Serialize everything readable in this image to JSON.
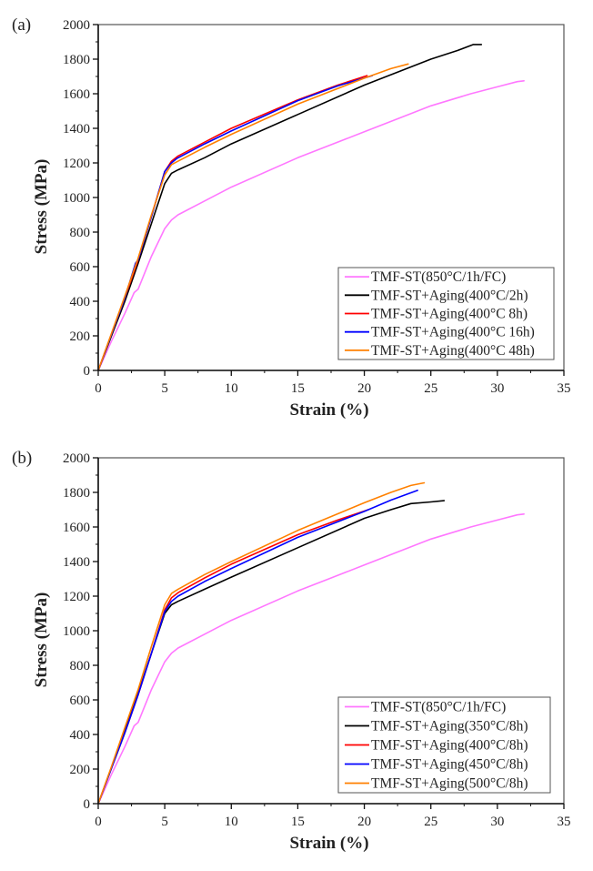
{
  "chart_data": [
    {
      "type": "line",
      "panel_label": "(a)",
      "title": "",
      "xlabel": "Strain (%)",
      "ylabel": "Stress (MPa)",
      "xlim": [
        0,
        35
      ],
      "ylim": [
        0,
        2000
      ],
      "xticks": [
        0,
        5,
        10,
        15,
        20,
        25,
        30,
        35
      ],
      "yticks": [
        0,
        200,
        400,
        600,
        800,
        1000,
        1200,
        1400,
        1600,
        1800,
        2000
      ],
      "grid": false,
      "legend_position": "bottom-right",
      "series": [
        {
          "name": "TMF-ST(850°C/1h/FC)",
          "color": "#ff77ff",
          "x": [
            0,
            1,
            2,
            2.7,
            3.0,
            4,
            5,
            5.5,
            6,
            8,
            10,
            15,
            20,
            25,
            28,
            30,
            31.5,
            32
          ],
          "y": [
            0,
            170,
            330,
            450,
            470,
            660,
            820,
            870,
            900,
            980,
            1060,
            1230,
            1380,
            1530,
            1600,
            1640,
            1670,
            1675
          ]
        },
        {
          "name": "TMF-ST+Aging(400°C/2h)",
          "color": "#000000",
          "x": [
            0,
            1,
            2,
            3,
            4,
            5,
            5.5,
            6,
            8,
            10,
            15,
            20,
            25,
            27,
            28.2,
            28.8
          ],
          "y": [
            0,
            200,
            400,
            620,
            850,
            1080,
            1140,
            1160,
            1230,
            1310,
            1480,
            1650,
            1800,
            1850,
            1885,
            1885
          ]
        },
        {
          "name": "TMF-ST+Aging(400°C 8h)",
          "color": "#ff0000",
          "x": [
            0,
            1,
            2,
            3,
            4,
            5,
            5.5,
            6,
            8,
            10,
            15,
            18,
            20.2
          ],
          "y": [
            0,
            210,
            420,
            640,
            890,
            1150,
            1210,
            1240,
            1320,
            1400,
            1565,
            1650,
            1705
          ]
        },
        {
          "name": "TMF-ST+Aging(400°C 16h)",
          "color": "#0000ff",
          "x": [
            0,
            1,
            2,
            2.8,
            3.0,
            4,
            5,
            5.5,
            5.9,
            8,
            10,
            15,
            18,
            20.6
          ],
          "y": [
            0,
            210,
            420,
            620,
            640,
            890,
            1150,
            1200,
            1225,
            1310,
            1385,
            1560,
            1645,
            1705
          ]
        },
        {
          "name": "TMF-ST+Aging(400°C 48h)",
          "color": "#ff8000",
          "x": [
            0,
            1,
            2,
            3,
            4,
            5,
            5.5,
            6,
            8,
            10,
            15,
            20,
            22,
            23.3
          ],
          "y": [
            0,
            215,
            430,
            650,
            900,
            1130,
            1190,
            1210,
            1290,
            1365,
            1540,
            1690,
            1745,
            1772
          ]
        }
      ]
    },
    {
      "type": "line",
      "panel_label": "(b)",
      "title": "",
      "xlabel": "Strain (%)",
      "ylabel": "Stress (MPa)",
      "xlim": [
        0,
        35
      ],
      "ylim": [
        0,
        2000
      ],
      "xticks": [
        0,
        5,
        10,
        15,
        20,
        25,
        30,
        35
      ],
      "yticks": [
        0,
        200,
        400,
        600,
        800,
        1000,
        1200,
        1400,
        1600,
        1800,
        2000
      ],
      "grid": false,
      "legend_position": "bottom-right",
      "series": [
        {
          "name": "TMF-ST(850°C/1h/FC)",
          "color": "#ff77ff",
          "x": [
            0,
            1,
            2,
            2.7,
            3.0,
            4,
            5,
            5.5,
            6,
            8,
            10,
            15,
            20,
            25,
            28,
            30,
            31.5,
            32
          ],
          "y": [
            0,
            170,
            330,
            450,
            470,
            660,
            820,
            870,
            900,
            980,
            1060,
            1230,
            1380,
            1530,
            1600,
            1640,
            1670,
            1675
          ]
        },
        {
          "name": "TMF-ST+Aging(350°C/8h)",
          "color": "#000000",
          "x": [
            0,
            1,
            2,
            3,
            4,
            5,
            5.5,
            6,
            8,
            10,
            15,
            20,
            22,
            23.5,
            25,
            26
          ],
          "y": [
            0,
            210,
            420,
            640,
            870,
            1100,
            1150,
            1170,
            1240,
            1310,
            1480,
            1650,
            1700,
            1735,
            1745,
            1752
          ]
        },
        {
          "name": "TMF-ST+Aging(400°C/8h)",
          "color": "#ff0000",
          "x": [
            0,
            1,
            2,
            3,
            4,
            5,
            5.5,
            6,
            8,
            10,
            15,
            18,
            20.3
          ],
          "y": [
            0,
            205,
            410,
            630,
            870,
            1120,
            1190,
            1220,
            1305,
            1385,
            1555,
            1640,
            1700
          ]
        },
        {
          "name": "TMF-ST+Aging(450°C/8h)",
          "color": "#0000ff",
          "x": [
            0,
            1,
            2,
            3,
            4,
            5,
            5.5,
            6,
            8,
            10,
            15,
            20,
            22,
            24
          ],
          "y": [
            0,
            205,
            410,
            630,
            870,
            1110,
            1170,
            1200,
            1285,
            1360,
            1540,
            1690,
            1755,
            1812
          ]
        },
        {
          "name": "TMF-ST+Aging(500°C/8h)",
          "color": "#ff8000",
          "x": [
            0,
            1,
            2,
            3,
            4,
            5,
            5.5,
            6,
            8,
            10,
            15,
            20,
            22,
            23.5,
            24.5
          ],
          "y": [
            0,
            215,
            440,
            660,
            910,
            1150,
            1215,
            1240,
            1325,
            1400,
            1580,
            1740,
            1800,
            1840,
            1855
          ]
        }
      ]
    }
  ]
}
